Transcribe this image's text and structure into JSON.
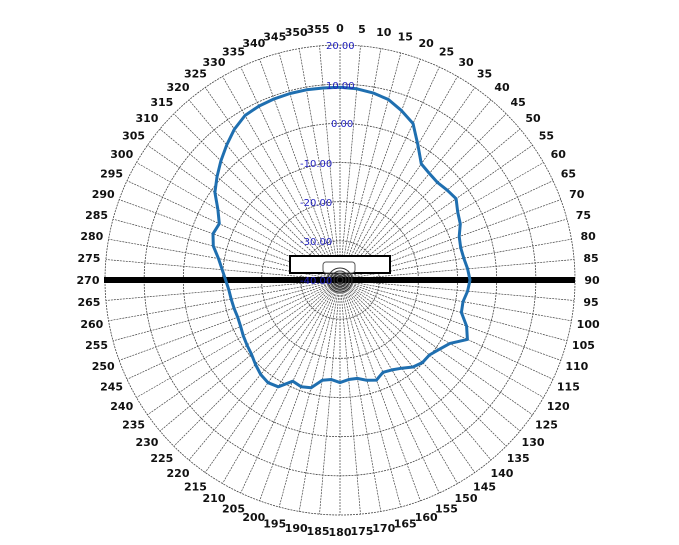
{
  "chart_data": {
    "type": "polar-line",
    "title": "",
    "angular_unit": "degrees",
    "angular_direction": "clockwise",
    "zero_at": "top",
    "angular_ticks": [
      0,
      5,
      10,
      15,
      20,
      25,
      30,
      35,
      40,
      45,
      50,
      55,
      60,
      65,
      70,
      75,
      80,
      85,
      90,
      95,
      100,
      105,
      110,
      115,
      120,
      125,
      130,
      135,
      140,
      145,
      150,
      155,
      160,
      165,
      170,
      175,
      180,
      185,
      190,
      195,
      200,
      205,
      210,
      215,
      220,
      225,
      230,
      235,
      240,
      245,
      250,
      255,
      260,
      265,
      270,
      275,
      280,
      285,
      290,
      295,
      300,
      305,
      310,
      315,
      320,
      325,
      330,
      335,
      340,
      345,
      350,
      355
    ],
    "radial_ticks": [
      "20.00",
      "10.00",
      "0.00",
      "-10.00",
      "-20.00",
      "-30.00",
      "-40.00"
    ],
    "radial_range": [
      -40,
      20
    ],
    "grid": true,
    "series": [
      {
        "name": "Radiation pattern",
        "color": "#1f6fb0",
        "angles": [
          0,
          5,
          10,
          15,
          20,
          25,
          30,
          35,
          40,
          45,
          50,
          55,
          60,
          65,
          70,
          75,
          80,
          85,
          90,
          95,
          100,
          105,
          110,
          115,
          120,
          125,
          130,
          135,
          140,
          145,
          150,
          155,
          160,
          165,
          170,
          175,
          180,
          185,
          190,
          195,
          200,
          205,
          210,
          215,
          220,
          225,
          230,
          235,
          240,
          245,
          250,
          255,
          260,
          265,
          270,
          275,
          280,
          285,
          290,
          295,
          300,
          305,
          310,
          315,
          320,
          325,
          330,
          335,
          340,
          345,
          350,
          355
        ],
        "values": [
          9.2,
          9.0,
          8.5,
          7.7,
          6.0,
          4.1,
          -0.2,
          -3.8,
          -4.5,
          -4.8,
          -4.3,
          -3.8,
          -5.3,
          -6.1,
          -7.6,
          -8.1,
          -7.9,
          -7.3,
          -6.8,
          -7.3,
          -8.1,
          -7.9,
          -5.6,
          -4.1,
          -7.6,
          -9.1,
          -10.2,
          -10.2,
          -11.0,
          -12.5,
          -13.5,
          -14.0,
          -12.8,
          -13.5,
          -14.5,
          -14.5,
          -13.8,
          -14.5,
          -14.0,
          -11.5,
          -11.0,
          -11.5,
          -8.5,
          -8.0,
          -8.5,
          -9.5,
          -10.5,
          -11.0,
          -11.5,
          -12.0,
          -12.2,
          -12.0,
          -11.8,
          -11.5,
          -10.8,
          -9.8,
          -8.5,
          -6.5,
          -5.5,
          -6.0,
          -4.0,
          -1.0,
          1.0,
          3.0,
          5.0,
          7.0,
          8.5,
          9.0,
          9.2,
          9.3,
          9.3,
          9.2
        ]
      }
    ],
    "annotations": [
      "horizontal black bar across 90°/270° axis",
      "device outline near center"
    ]
  },
  "labels": {
    "r20": "20.00",
    "r10": "10.00",
    "r0": "0.00",
    "rm10": "-10.00",
    "rm20": "-20.00",
    "rm30": "-30.00",
    "rm40": "-40.00"
  }
}
